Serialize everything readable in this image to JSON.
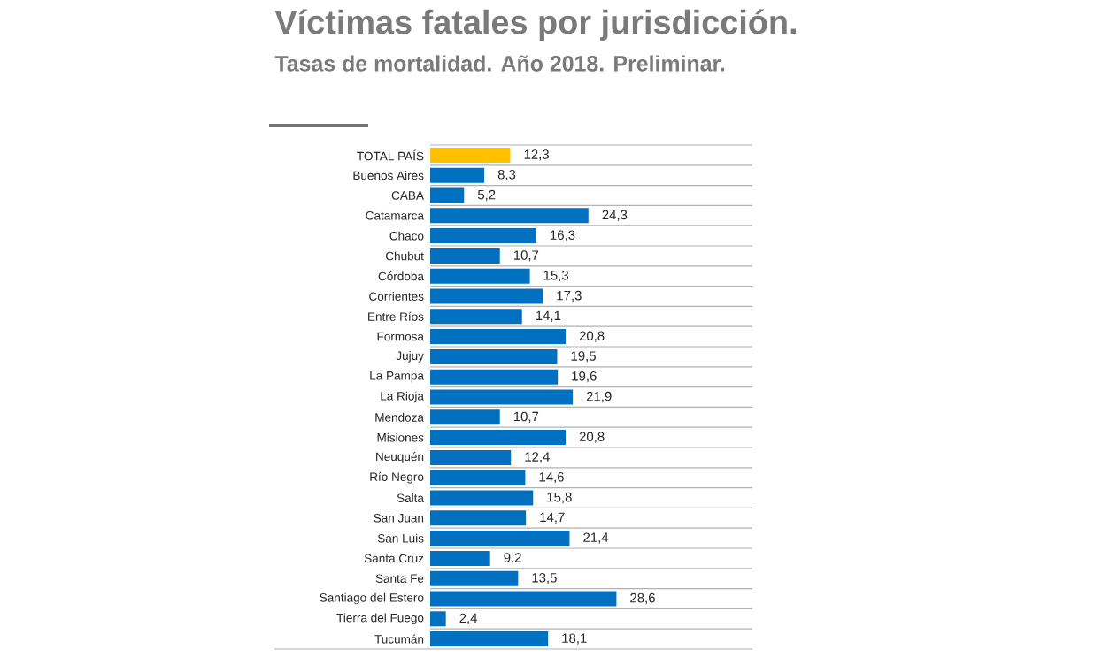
{
  "chart_data": {
    "type": "bar",
    "orientation": "horizontal",
    "title": "Víctimas fatales por jurisdicción.",
    "subtitle": "Tasas de mortalidad.  Año 2018. Preliminar.",
    "grid": "y",
    "categories": [
      "TOTAL PAÍS",
      "Buenos Aires",
      "CABA",
      "Catamarca",
      "Chaco",
      "Chubut",
      "Córdoba",
      "Corrientes",
      "Entre Ríos",
      "Formosa",
      "Jujuy",
      "La Pampa",
      "La Rioja",
      "Mendoza",
      "Misiones",
      "Neuquén",
      "Río Negro",
      "Salta",
      "San Juan",
      "San Luis",
      "Santa Cruz",
      "Santa Fe",
      "Santiago del Estero",
      "Tierra del Fuego",
      "Tucumán"
    ],
    "values": [
      12.3,
      8.3,
      5.2,
      24.3,
      16.3,
      10.7,
      15.3,
      17.3,
      14.1,
      20.8,
      19.5,
      19.6,
      21.9,
      10.7,
      20.8,
      12.4,
      14.6,
      15.8,
      14.7,
      21.4,
      9.2,
      13.5,
      28.6,
      2.4,
      18.1
    ],
    "value_labels": [
      "12,3",
      "8,3",
      "5,2",
      "24,3",
      "16,3",
      "10,7",
      "15,3",
      "17,3",
      "14,1",
      "20,8",
      "19,5",
      "19,6",
      "21,9",
      "10,7",
      "20,8",
      "12,4",
      "14,6",
      "15,8",
      "14,7",
      "21,4",
      "9,2",
      "13,5",
      "28,6",
      "2,4",
      "18,1"
    ],
    "colors": [
      "#ffc000",
      "#0070c0",
      "#0070c0",
      "#0070c0",
      "#0070c0",
      "#0070c0",
      "#0070c0",
      "#0070c0",
      "#0070c0",
      "#0070c0",
      "#0070c0",
      "#0070c0",
      "#0070c0",
      "#0070c0",
      "#0070c0",
      "#0070c0",
      "#0070c0",
      "#0070c0",
      "#0070c0",
      "#0070c0",
      "#0070c0",
      "#0070c0",
      "#0070c0",
      "#0070c0",
      "#0070c0"
    ]
  }
}
